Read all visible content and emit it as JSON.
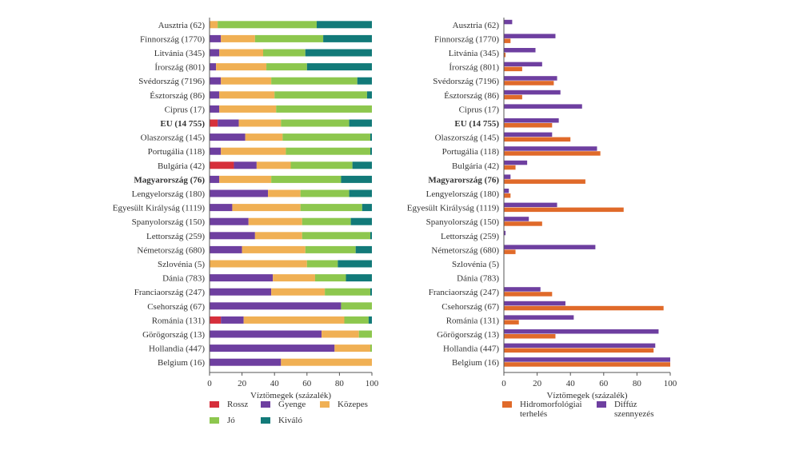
{
  "chart_data": [
    {
      "type": "bar",
      "stacked": true,
      "orientation": "horizontal",
      "categories": [
        "Ausztria (62)",
        "Finnország (1770)",
        "Litvánia (345)",
        "Írország (801)",
        "Svédország (7196)",
        "Észtország (86)",
        "Ciprus (17)",
        "EU (14 755)",
        "Olaszország (145)",
        "Portugália (118)",
        "Bulgária (42)",
        "Magyarország (76)",
        "Lengyelország (180)",
        "Egyesült Királyság (1119)",
        "Spanyolország (150)",
        "Lettország (259)",
        "Németország (680)",
        "Szlovénia (5)",
        "Dánia (783)",
        "Franciaország (247)",
        "Csehország (67)",
        "Románia (131)",
        "Görögország (13)",
        "Hollandia (447)",
        "Belgium (16)"
      ],
      "bold_categories": [
        "EU (14 755)",
        "Magyarország (76)"
      ],
      "series": [
        {
          "name": "Rossz",
          "color": "#d62f3b",
          "values": [
            0,
            0,
            0,
            0,
            0,
            0,
            0,
            5,
            0,
            0,
            15,
            0,
            0,
            0,
            0,
            0,
            0,
            0,
            0,
            0,
            0,
            7,
            0,
            0,
            0
          ]
        },
        {
          "name": "Gyenge",
          "color": "#6e3fa0",
          "values": [
            0,
            7,
            6,
            4,
            7,
            6,
            6,
            13,
            22,
            7,
            14,
            6,
            36,
            14,
            24,
            28,
            20,
            0,
            39,
            38,
            81,
            14,
            69,
            77,
            44
          ]
        },
        {
          "name": "Közepes",
          "color": "#f0b054",
          "values": [
            5,
            21,
            27,
            31,
            31,
            34,
            35,
            26,
            23,
            40,
            21,
            32,
            20,
            42,
            33,
            29,
            39,
            60,
            26,
            33,
            0,
            62,
            23,
            22,
            56
          ]
        },
        {
          "name": "Jó",
          "color": "#8dc74e",
          "values": [
            61,
            42,
            26,
            25,
            53,
            57,
            59,
            42,
            54,
            52,
            38,
            43,
            30,
            38,
            30,
            42,
            31,
            19,
            19,
            28,
            19,
            15,
            8,
            1,
            0
          ]
        },
        {
          "name": "Kiváló",
          "color": "#127a79",
          "values": [
            34,
            30,
            41,
            40,
            9,
            3,
            0,
            14,
            1,
            1,
            12,
            19,
            14,
            6,
            13,
            1,
            10,
            21,
            16,
            1,
            0,
            2,
            0,
            0,
            0
          ]
        }
      ],
      "xlabel": "Víztömegek (százalék)",
      "xlim": [
        0,
        100
      ],
      "xticks": [
        0,
        20,
        40,
        60,
        80,
        100
      ],
      "legend_position": "bottom"
    },
    {
      "type": "bar",
      "orientation": "horizontal",
      "categories": [
        "Ausztria (62)",
        "Finnország (1770)",
        "Litvánia (345)",
        "Írország (801)",
        "Svédország (7196)",
        "Észtország (86)",
        "Ciprus (17)",
        "EU (14 755)",
        "Olaszország (145)",
        "Portugália (118)",
        "Bulgária (42)",
        "Magyarország (76)",
        "Lengyelország (180)",
        "Egyesült Királyság (1119)",
        "Spanyolország (150)",
        "Lettország (259)",
        "Németország (680)",
        "Szlovénia (5)",
        "Dánia (783)",
        "Franciaország (247)",
        "Csehország (67)",
        "Románia (131)",
        "Görögország (13)",
        "Hollandia (447)",
        "Belgium (16)"
      ],
      "bold_categories": [
        "EU (14 755)",
        "Magyarország (76)"
      ],
      "series": [
        {
          "name": "Hidromorfológiai terhelés",
          "color": "#e06a2a",
          "values": [
            0,
            4,
            1,
            11,
            30,
            11,
            0,
            29,
            40,
            58,
            7,
            49,
            4,
            72,
            23,
            0,
            7,
            0,
            0,
            29,
            96,
            9,
            31,
            90,
            100
          ]
        },
        {
          "name": "Diffúz szennyezés",
          "color": "#6e3fa0",
          "values": [
            5,
            31,
            19,
            23,
            32,
            34,
            47,
            33,
            29,
            56,
            14,
            4,
            3,
            32,
            15,
            1,
            55,
            0,
            0,
            22,
            37,
            42,
            93,
            91,
            100
          ]
        }
      ],
      "xlabel": "Víztömegek (százalék)",
      "xlim": [
        0,
        100
      ],
      "xticks": [
        0,
        20,
        40,
        60,
        80,
        100
      ],
      "legend_position": "bottom"
    }
  ],
  "legend": {
    "left": [
      {
        "label": "Rossz",
        "color": "#d62f3b"
      },
      {
        "label": "Gyenge",
        "color": "#6e3fa0"
      },
      {
        "label": "Közepes",
        "color": "#f0b054"
      },
      {
        "label": "Jó",
        "color": "#8dc74e"
      },
      {
        "label": "Kiváló",
        "color": "#127a79"
      }
    ],
    "right": [
      {
        "label_line1": "Hidromorfológiai",
        "label_line2": "terhelés",
        "color": "#e06a2a"
      },
      {
        "label_line1": "Diffúz",
        "label_line2": "szennyezés",
        "color": "#6e3fa0"
      }
    ]
  }
}
